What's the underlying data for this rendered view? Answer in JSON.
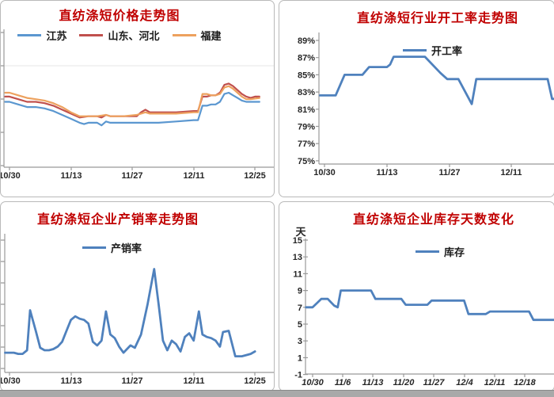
{
  "chart_data": [
    {
      "type": "line",
      "panel": "top-left",
      "title": "直纺涤短价格走势图",
      "title_color": "#c00000",
      "legend_position": "top-center",
      "x_tick_labels": [
        "10/30",
        "11/13",
        "11/27",
        "12/11",
        "12/25"
      ],
      "x_unit": "days from 10/30",
      "y_axis": {
        "labels_visible": false,
        "note": "y-axis tick labels cropped off left edge of screenshot; values are relative price index 0-100 of plot height"
      },
      "ylim": [
        0,
        100
      ],
      "grid": "single faint horizontal gridline near top",
      "series": [
        {
          "name": "江苏",
          "color": "#5b97d0",
          "points": [
            [
              -1,
              50
            ],
            [
              0,
              50
            ],
            [
              2,
              48
            ],
            [
              4,
              46
            ],
            [
              6,
              46
            ],
            [
              8,
              45
            ],
            [
              10,
              43
            ],
            [
              12,
              40
            ],
            [
              14,
              37
            ],
            [
              16,
              34
            ],
            [
              17,
              33
            ],
            [
              18,
              34
            ],
            [
              20,
              34
            ],
            [
              21,
              32
            ],
            [
              22,
              35
            ],
            [
              23,
              34
            ],
            [
              26,
              34
            ],
            [
              30,
              34
            ],
            [
              34,
              34
            ],
            [
              38,
              35
            ],
            [
              42,
              36
            ],
            [
              43,
              36
            ],
            [
              44,
              47
            ],
            [
              45,
              47
            ],
            [
              46,
              48
            ],
            [
              47,
              48
            ],
            [
              48,
              50
            ],
            [
              49,
              56
            ],
            [
              50,
              57
            ],
            [
              51,
              55
            ],
            [
              52,
              53
            ],
            [
              53,
              51
            ],
            [
              54,
              50
            ],
            [
              55,
              50
            ],
            [
              57,
              50
            ]
          ]
        },
        {
          "name": "山东、河北",
          "color": "#c0504d",
          "points": [
            [
              -1,
              54
            ],
            [
              0,
              54
            ],
            [
              2,
              52
            ],
            [
              4,
              50
            ],
            [
              6,
              50
            ],
            [
              8,
              49
            ],
            [
              10,
              47
            ],
            [
              12,
              44
            ],
            [
              14,
              41
            ],
            [
              16,
              38
            ],
            [
              18,
              39
            ],
            [
              20,
              39
            ],
            [
              21,
              38
            ],
            [
              22,
              40
            ],
            [
              23,
              39
            ],
            [
              26,
              39
            ],
            [
              29,
              39
            ],
            [
              30,
              42
            ],
            [
              31,
              44
            ],
            [
              32,
              42
            ],
            [
              34,
              42
            ],
            [
              38,
              42
            ],
            [
              42,
              43
            ],
            [
              43,
              43
            ],
            [
              44,
              54
            ],
            [
              45,
              54
            ],
            [
              46,
              55
            ],
            [
              47,
              55
            ],
            [
              48,
              57
            ],
            [
              49,
              63
            ],
            [
              50,
              64
            ],
            [
              51,
              62
            ],
            [
              52,
              59
            ],
            [
              53,
              56
            ],
            [
              54,
              54
            ],
            [
              55,
              53
            ],
            [
              56,
              54
            ],
            [
              57,
              54
            ]
          ]
        },
        {
          "name": "福建",
          "color": "#eda15e",
          "points": [
            [
              -1,
              57
            ],
            [
              0,
              57
            ],
            [
              2,
              55
            ],
            [
              4,
              53
            ],
            [
              6,
              52
            ],
            [
              8,
              51
            ],
            [
              10,
              49
            ],
            [
              12,
              46
            ],
            [
              14,
              42
            ],
            [
              16,
              39
            ],
            [
              18,
              39
            ],
            [
              20,
              39
            ],
            [
              22,
              40
            ],
            [
              23,
              39
            ],
            [
              26,
              39
            ],
            [
              29,
              40
            ],
            [
              30,
              41
            ],
            [
              31,
              42
            ],
            [
              32,
              41
            ],
            [
              34,
              41
            ],
            [
              38,
              41
            ],
            [
              42,
              42
            ],
            [
              43,
              42
            ],
            [
              44,
              56
            ],
            [
              45,
              56
            ],
            [
              46,
              55
            ],
            [
              47,
              55
            ],
            [
              48,
              56
            ],
            [
              49,
              61
            ],
            [
              50,
              62
            ],
            [
              51,
              60
            ],
            [
              52,
              57
            ],
            [
              53,
              54
            ],
            [
              54,
              52
            ],
            [
              55,
              52
            ],
            [
              57,
              53
            ]
          ]
        }
      ]
    },
    {
      "type": "line",
      "panel": "top-right",
      "title": "直纺涤短行业开工率走势图",
      "title_color": "#c00000",
      "legend_position": "inside-top",
      "x_tick_labels": [
        "10/30",
        "11/13",
        "11/27",
        "12/11"
      ],
      "x_unit": "days from 10/30; 12/25 label cropped off right edge",
      "y_tick_labels": [
        "89%",
        "87%",
        "85%",
        "83%",
        "81%",
        "79%",
        "77%",
        "75%"
      ],
      "ylim": [
        75,
        89
      ],
      "series": [
        {
          "name": "开工率",
          "color": "#4f81bd",
          "points": [
            [
              -1,
              82.6
            ],
            [
              0,
              82.6
            ],
            [
              2.5,
              82.6
            ],
            [
              4.5,
              85
            ],
            [
              8.5,
              85
            ],
            [
              10,
              85.9
            ],
            [
              14,
              85.9
            ],
            [
              14.7,
              86.2
            ],
            [
              15.5,
              87.1
            ],
            [
              22.5,
              87.1
            ],
            [
              26,
              85.2
            ],
            [
              27.5,
              84.5
            ],
            [
              30,
              84.5
            ],
            [
              33,
              81.6
            ],
            [
              34,
              84.5
            ],
            [
              50,
              84.5
            ],
            [
              51,
              82.2
            ],
            [
              55,
              82.2
            ]
          ]
        }
      ]
    },
    {
      "type": "line",
      "panel": "bottom-left",
      "title": "直纺涤短企业产销率走势图",
      "title_color": "#c00000",
      "legend_position": "inside-top",
      "x_tick_labels": [
        "10/30",
        "11/13",
        "11/27",
        "12/11",
        "12/25"
      ],
      "x_unit": "days from 10/30",
      "y_axis": {
        "labels_visible": false,
        "note": "y-axis tick labels cropped off left edge of screenshot; values are relative ratio index 0-100 of plot height"
      },
      "ylim": [
        0,
        100
      ],
      "series": [
        {
          "name": "产销率",
          "color": "#4f81bd",
          "points": [
            [
              -1,
              15
            ],
            [
              0,
              15
            ],
            [
              1,
              15
            ],
            [
              2,
              14
            ],
            [
              3,
              14
            ],
            [
              4,
              17
            ],
            [
              4.7,
              50
            ],
            [
              6,
              33
            ],
            [
              7,
              19
            ],
            [
              8,
              17
            ],
            [
              9,
              17
            ],
            [
              10,
              18
            ],
            [
              11,
              20
            ],
            [
              12,
              24
            ],
            [
              13,
              33
            ],
            [
              14,
              42
            ],
            [
              15,
              45
            ],
            [
              16,
              43
            ],
            [
              17,
              42
            ],
            [
              18,
              39
            ],
            [
              19,
              24
            ],
            [
              20,
              21
            ],
            [
              21,
              25
            ],
            [
              22,
              49
            ],
            [
              23,
              30
            ],
            [
              24,
              27
            ],
            [
              25,
              20
            ],
            [
              26,
              15
            ],
            [
              27.6,
              21
            ],
            [
              28.6,
              19
            ],
            [
              30,
              30
            ],
            [
              31.5,
              55
            ],
            [
              33,
              84
            ],
            [
              34,
              55
            ],
            [
              35,
              25
            ],
            [
              36,
              17
            ],
            [
              37,
              25
            ],
            [
              38,
              22
            ],
            [
              39,
              16
            ],
            [
              40,
              28
            ],
            [
              41,
              31
            ],
            [
              42,
              25
            ],
            [
              43.2,
              49
            ],
            [
              44,
              30
            ],
            [
              45,
              28
            ],
            [
              46,
              27
            ],
            [
              47,
              25
            ],
            [
              48,
              20
            ],
            [
              48.7,
              32
            ],
            [
              50,
              33
            ],
            [
              51.5,
              12
            ],
            [
              53,
              12
            ],
            [
              54,
              13
            ],
            [
              55,
              14
            ],
            [
              56,
              16
            ]
          ]
        }
      ]
    },
    {
      "type": "line",
      "panel": "bottom-right",
      "title": "直纺涤短企业库存天数变化",
      "title_color": "#c00000",
      "legend_position": "inside-top",
      "y_axis_unit": "天",
      "x_tick_labels": [
        "10/30",
        "11/6",
        "11/13",
        "11/20",
        "11/27",
        "12/4",
        "12/11",
        "12/18"
      ],
      "x_unit": "days from 10/30; 12/25 label cropped off right edge",
      "y_tick_labels": [
        "15",
        "13",
        "11",
        "9",
        "7",
        "5",
        "3",
        "1",
        "-1"
      ],
      "ylim": [
        -1,
        15
      ],
      "series": [
        {
          "name": "库存",
          "color": "#4f81bd",
          "points": [
            [
              -1.5,
              7
            ],
            [
              0,
              7
            ],
            [
              1,
              7.5
            ],
            [
              2,
              8
            ],
            [
              3.5,
              8
            ],
            [
              5,
              7.2
            ],
            [
              5.8,
              7
            ],
            [
              6.5,
              9
            ],
            [
              13.5,
              9
            ],
            [
              14.5,
              8
            ],
            [
              20.5,
              8
            ],
            [
              21.5,
              7.3
            ],
            [
              26.5,
              7.3
            ],
            [
              27.5,
              7.8
            ],
            [
              35,
              7.8
            ],
            [
              36,
              6.2
            ],
            [
              40,
              6.2
            ],
            [
              41,
              6.5
            ],
            [
              50,
              6.5
            ],
            [
              51,
              5.5
            ],
            [
              57,
              5.5
            ]
          ]
        }
      ]
    }
  ]
}
